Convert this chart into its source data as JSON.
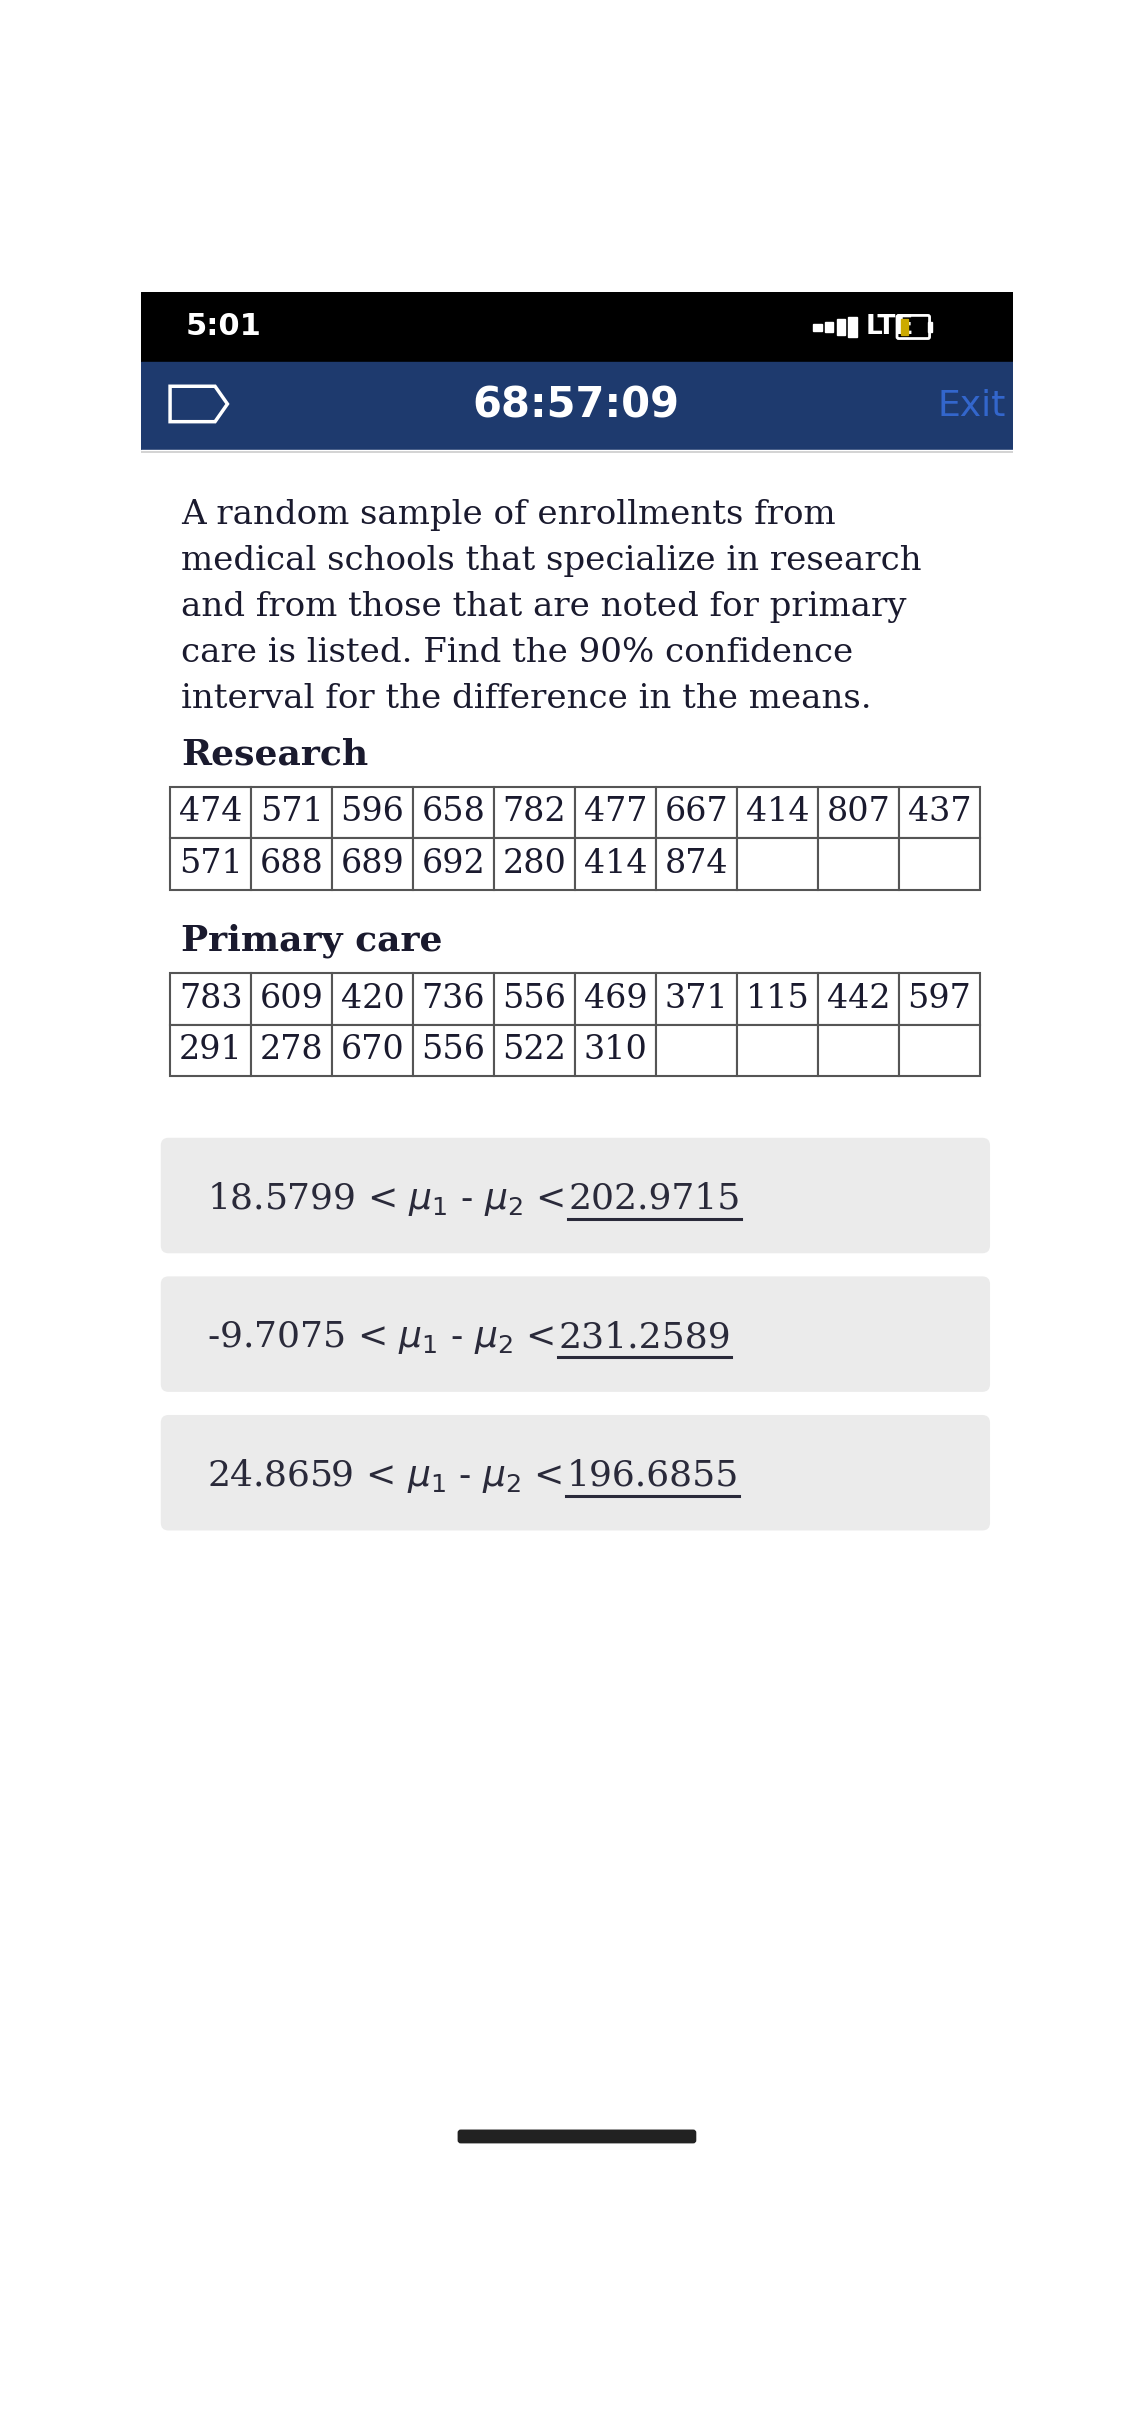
{
  "status_bar_time": "5:01",
  "header_timer": "68:57:09",
  "header_exit": "Exit",
  "question_text": "A random sample of enrollments from\nmedical schools that specialize in research\nand from those that are noted for primary\ncare is listed. Find the 90% confidence\ninterval for the difference in the means.",
  "research_label": "Research",
  "primary_label": "Primary care",
  "research_row1": [
    "474",
    "571",
    "596",
    "658",
    "782",
    "477",
    "667",
    "414",
    "807",
    "437"
  ],
  "research_row2": [
    "571",
    "688",
    "689",
    "692",
    "280",
    "414",
    "874",
    "",
    "",
    ""
  ],
  "primary_row1": [
    "783",
    "609",
    "420",
    "736",
    "556",
    "469",
    "371",
    "115",
    "442",
    "597"
  ],
  "primary_row2": [
    "291",
    "278",
    "670",
    "556",
    "522",
    "310",
    "",
    "",
    "",
    ""
  ],
  "answers": [
    {
      "left": "18.5799 < ",
      "value": "202.9715"
    },
    {
      "left": "-9.7075 < ",
      "value": "231.2589"
    },
    {
      "left": "24.8659 < ",
      "value": "196.6855"
    }
  ],
  "bg_color": "#ffffff",
  "header_bg": "#1e3a6e",
  "status_bg": "#000000",
  "answer_bg": "#ebebeb",
  "text_color": "#1a1a2e",
  "exit_color": "#3366cc",
  "table_border_color": "#555555",
  "answer_text_color": "#2a2a3a"
}
